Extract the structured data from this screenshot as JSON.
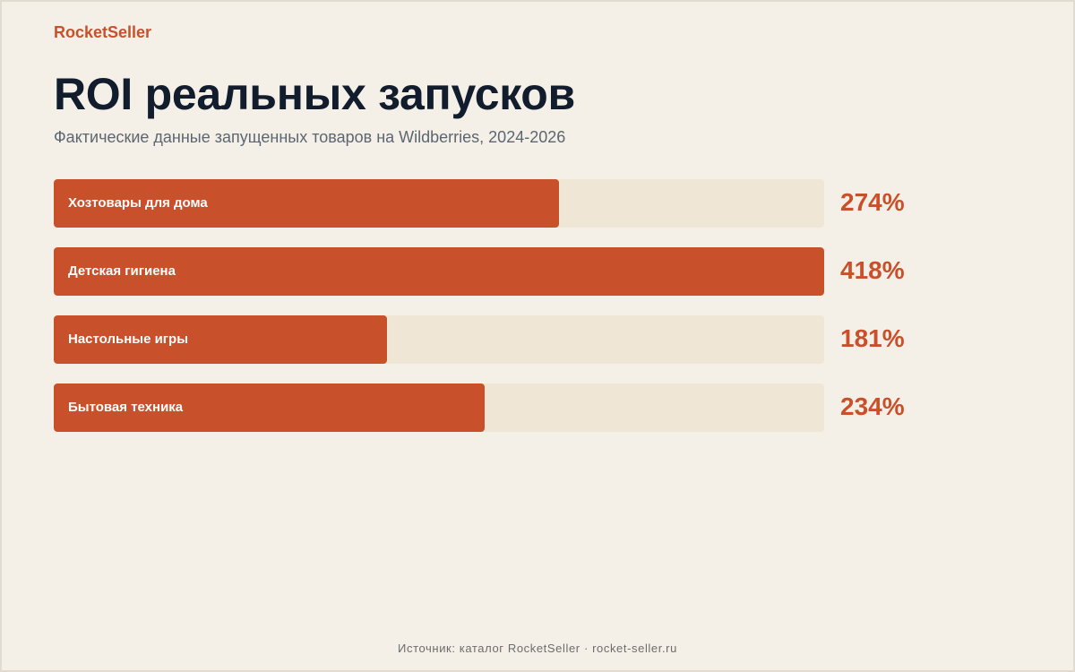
{
  "brand": "RocketSeller",
  "chart_data": {
    "type": "bar",
    "orientation": "horizontal",
    "title": "ROI реальных запусков",
    "subtitle": "Фактические данные запущенных товаров на Wildberries, 2024-2026",
    "categories": [
      "Хозтовары для дома",
      "Детская гигиена",
      "Настольные игры",
      "Бытовая техника"
    ],
    "values": [
      274,
      418,
      181,
      234
    ],
    "value_labels": [
      "274%",
      "418%",
      "181%",
      "234%"
    ],
    "xlim": [
      0,
      418
    ],
    "grid": false,
    "bar_color": "#c8502a",
    "track_color": "#efe6d6"
  },
  "footer": "Источник: каталог RocketSeller · rocket-seller.ru"
}
